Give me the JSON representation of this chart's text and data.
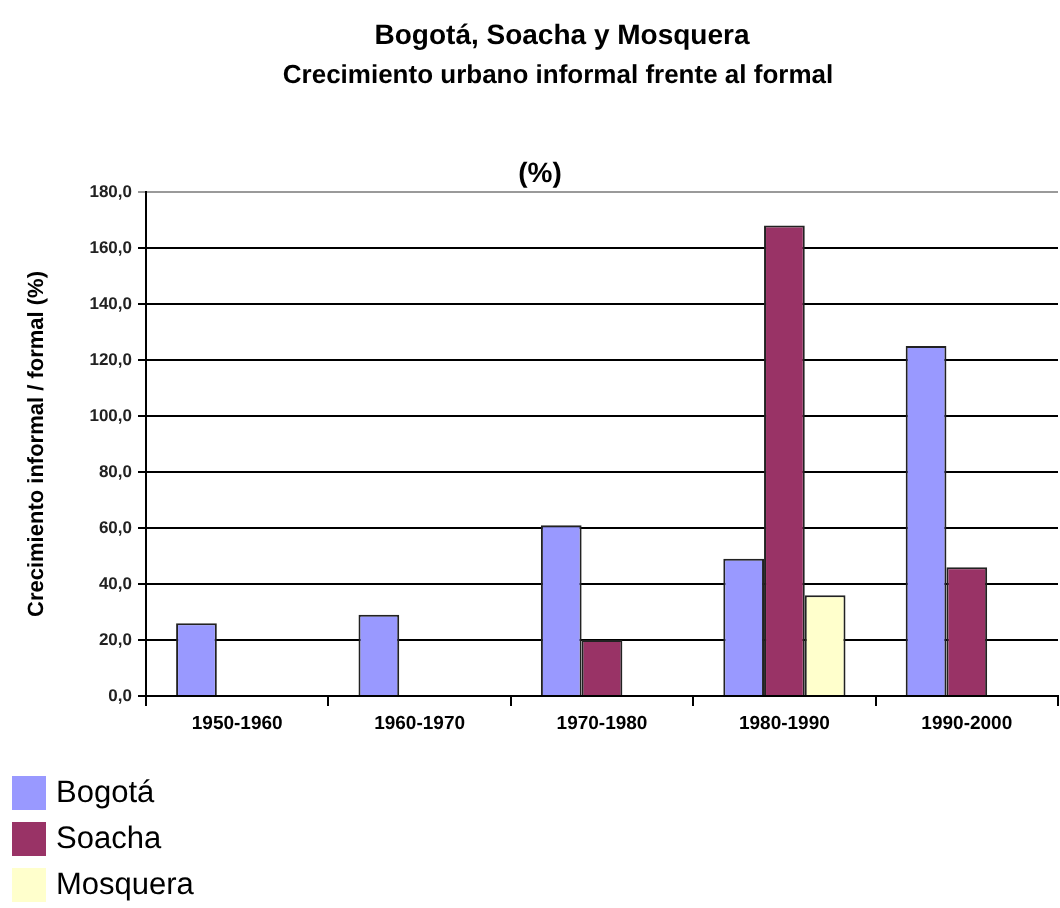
{
  "chart_data": {
    "type": "bar",
    "title": "Bogotá, Soacha y Mosquera",
    "subtitle": "Crecimiento urbano informal frente al formal",
    "ylabel": "Crecimiento informal / formal (%)",
    "annotations": [
      "(%)"
    ],
    "categories": [
      "1950-1960",
      "1960-1970",
      "1970-1980",
      "1980-1990",
      "1990-2000"
    ],
    "series": [
      {
        "name": "Bogotá",
        "color": "#9999ff",
        "values": [
          26,
          29,
          61,
          49,
          125
        ]
      },
      {
        "name": "Soacha",
        "color": "#993366",
        "values": [
          null,
          null,
          20,
          168,
          46
        ]
      },
      {
        "name": "Mosquera",
        "color": "#ffffcc",
        "values": [
          null,
          null,
          null,
          36,
          null
        ]
      }
    ],
    "ylim": [
      0,
      180
    ],
    "yticks": [
      {
        "value": 0,
        "label": "0,0"
      },
      {
        "value": 20,
        "label": "20,0"
      },
      {
        "value": 40,
        "label": "40,0"
      },
      {
        "value": 60,
        "label": "60,0"
      },
      {
        "value": 80,
        "label": "80,0"
      },
      {
        "value": 100,
        "label": "100,0"
      },
      {
        "value": 120,
        "label": "120,0"
      },
      {
        "value": 140,
        "label": "140,0"
      },
      {
        "value": 160,
        "label": "160,0"
      },
      {
        "value": 180,
        "label": "180,0"
      }
    ],
    "grid": "y",
    "legend": "bottom left"
  }
}
